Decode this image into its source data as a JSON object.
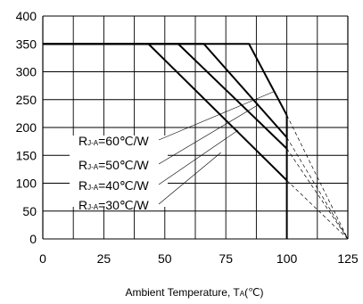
{
  "chart_data": {
    "type": "line",
    "xlabel": {
      "main": "Ambient Temperature, T",
      "sub": "A",
      "unit": "(℃)"
    },
    "ylabel": "",
    "xlim": [
      0,
      125
    ],
    "ylim": [
      0,
      400
    ],
    "x_ticks": [
      0,
      25,
      50,
      75,
      100,
      125
    ],
    "y_ticks": [
      0,
      50,
      100,
      150,
      200,
      250,
      300,
      350,
      400
    ],
    "grid": true,
    "series": [
      {
        "name_main": "R",
        "name_sub": "J-A",
        "name_rest": "=30℃/W",
        "points": [
          [
            0,
            350
          ],
          [
            43.3,
            350
          ],
          [
            100,
            105
          ]
        ],
        "extension": [
          [
            100,
            105
          ],
          [
            125,
            0
          ]
        ]
      },
      {
        "name_main": "R",
        "name_sub": "J-A",
        "name_rest": "=40℃/W",
        "points": [
          [
            0,
            350
          ],
          [
            55.5,
            350
          ],
          [
            100,
            162
          ]
        ],
        "extension": [
          [
            100,
            162
          ],
          [
            125,
            0
          ]
        ]
      },
      {
        "name_main": "R",
        "name_sub": "J-A",
        "name_rest": "=50℃/W",
        "points": [
          [
            0,
            350
          ],
          [
            66.0,
            350
          ],
          [
            100,
            182
          ]
        ],
        "extension": [
          [
            100,
            182
          ],
          [
            125,
            0
          ]
        ]
      },
      {
        "name_main": "R",
        "name_sub": "J-A",
        "name_rest": "=60℃/W",
        "points": [
          [
            0,
            350
          ],
          [
            84.5,
            350
          ],
          [
            100,
            222
          ]
        ],
        "extension": [
          [
            100,
            222
          ],
          [
            125,
            0
          ]
        ]
      }
    ],
    "drop": {
      "x": 100,
      "from": 222,
      "to": 0
    },
    "legend_order": [
      3,
      2,
      1,
      0
    ],
    "leader_targets": [
      [
        95,
        265
      ],
      [
        88,
        240
      ],
      [
        80,
        195
      ],
      [
        73,
        155
      ]
    ]
  }
}
